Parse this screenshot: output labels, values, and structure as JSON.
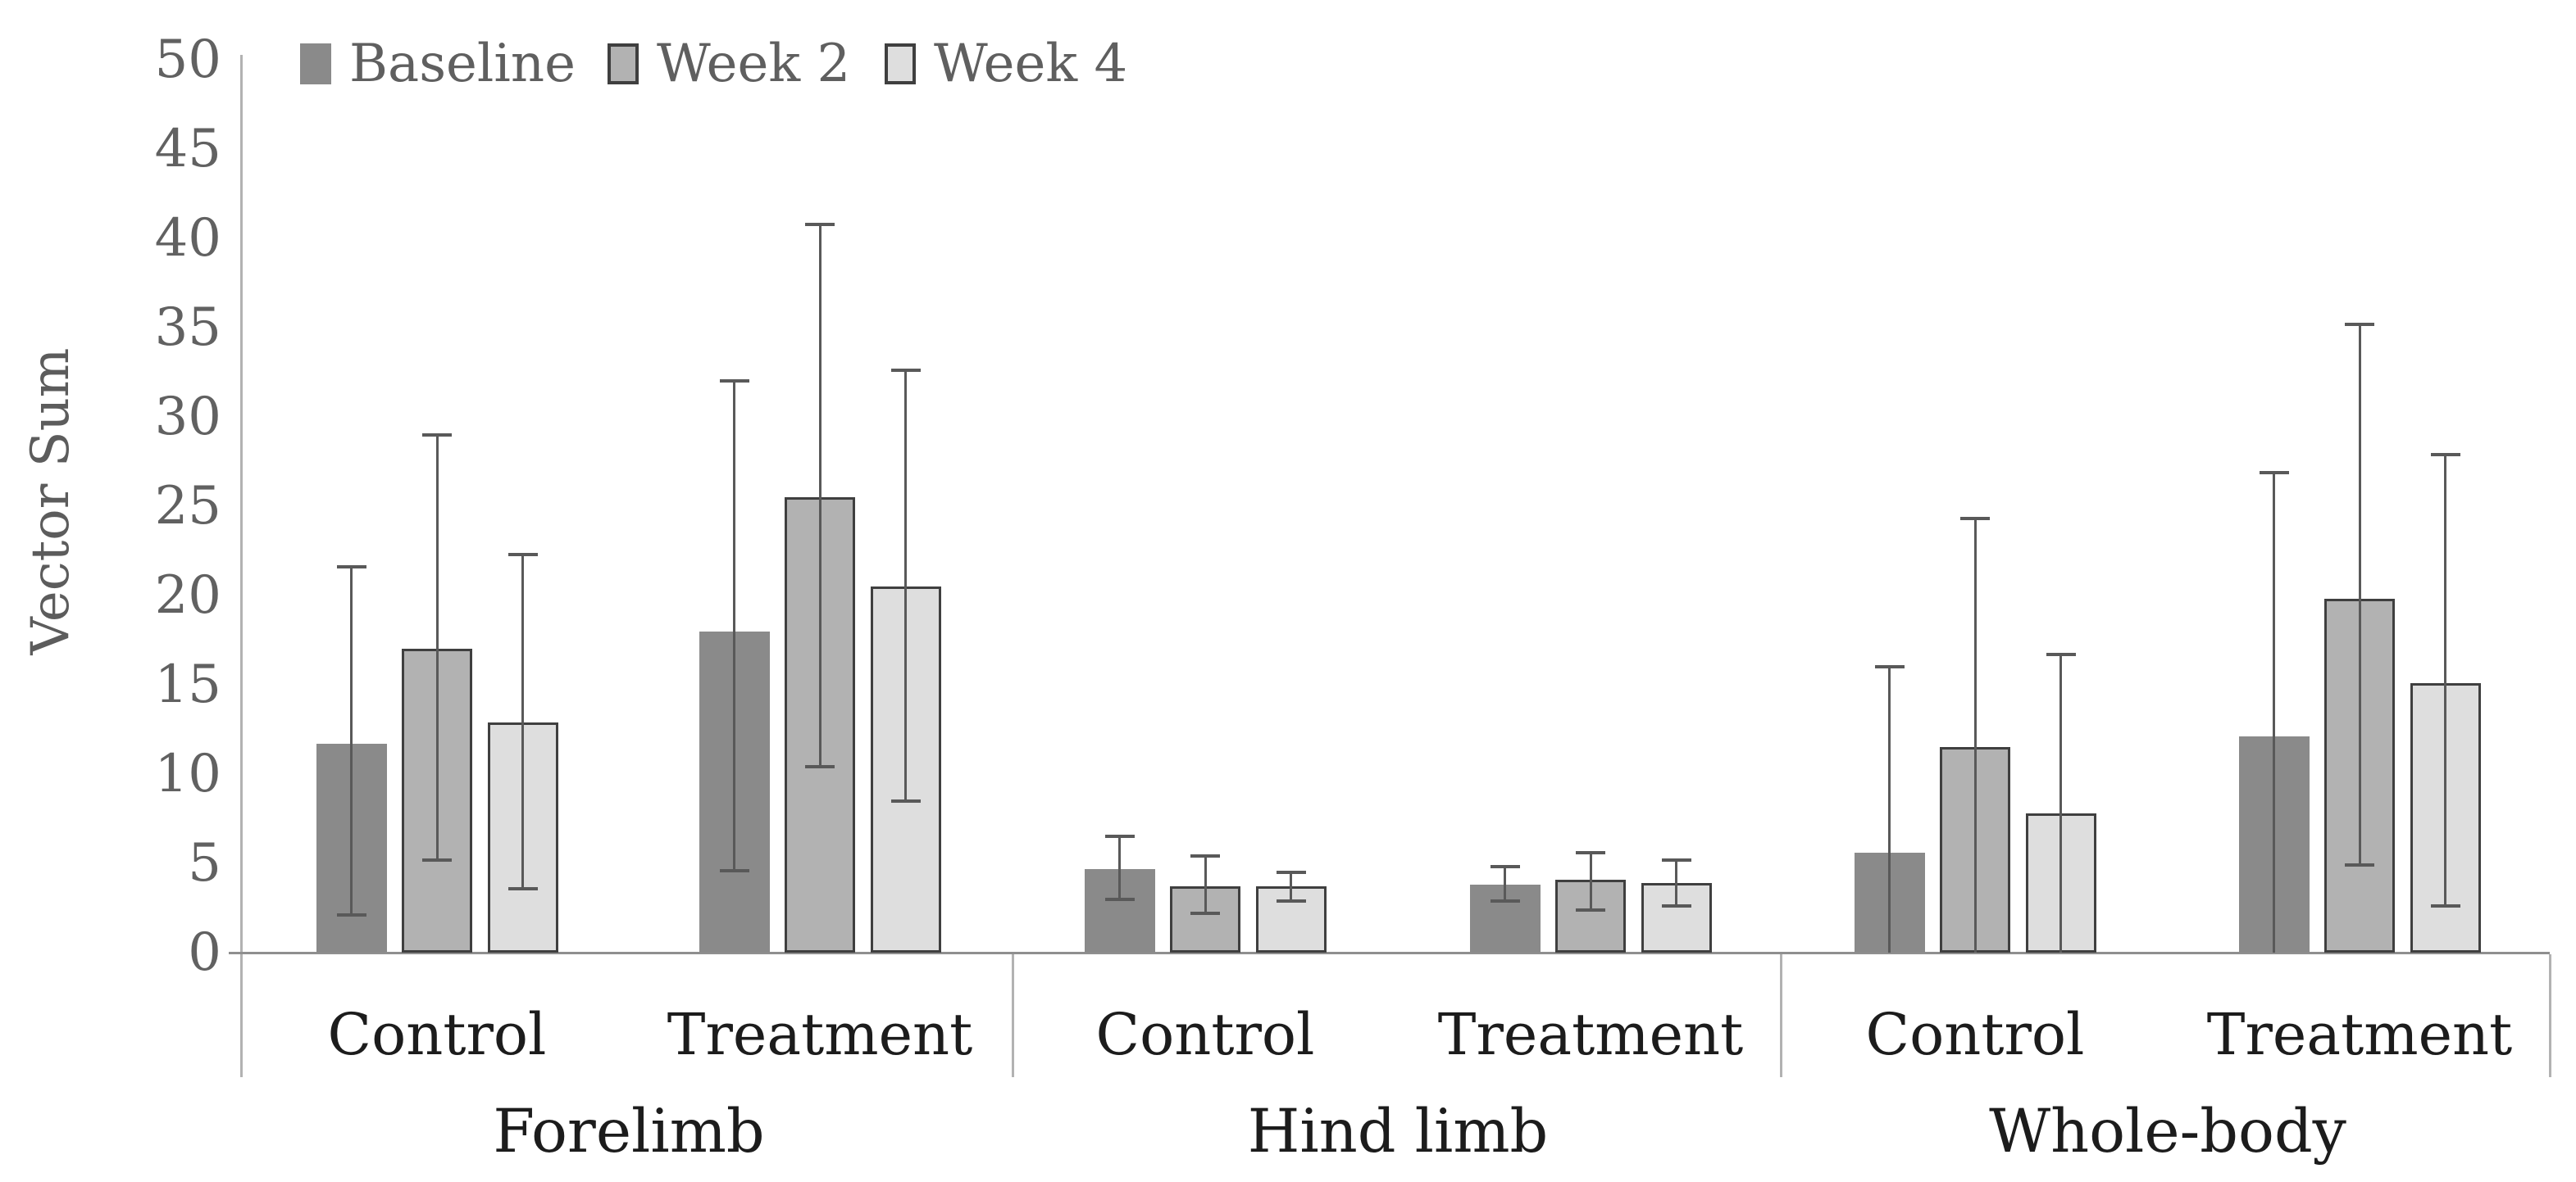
{
  "chart_data": {
    "type": "bar",
    "title": "",
    "ylabel": "Vector Sum",
    "ylim": [
      0,
      50
    ],
    "ytick_step": 5,
    "ytick_labels": [
      "0",
      "5",
      "10",
      "15",
      "20",
      "25",
      "30",
      "35",
      "40",
      "45",
      "50"
    ],
    "grid": false,
    "legend_position": "top-left",
    "error_bars": true,
    "series": [
      {
        "name": "Baseline",
        "fill": "#8a8a8a",
        "border": null
      },
      {
        "name": "Week 2",
        "fill": "#b2b2b2",
        "border": "#3f3f3f"
      },
      {
        "name": "Week 4",
        "fill": "#dedede",
        "border": "#3f3f3f"
      }
    ],
    "groups": [
      {
        "label": "Forelimb",
        "subgroups": [
          {
            "label": "Control",
            "values": [
              11.7,
              17.0,
              12.9
            ],
            "error_low": [
              2.1,
              5.2,
              3.6
            ],
            "error_high": [
              21.6,
              29.0,
              22.3
            ]
          },
          {
            "label": "Treatment",
            "values": [
              18.0,
              25.5,
              20.5
            ],
            "error_low": [
              4.6,
              10.4,
              8.5
            ],
            "error_high": [
              32.0,
              40.8,
              32.6
            ]
          }
        ]
      },
      {
        "label": "Hind limb",
        "subgroups": [
          {
            "label": "Control",
            "values": [
              4.7,
              3.7,
              3.7
            ],
            "error_low": [
              3.0,
              2.2,
              2.9
            ],
            "error_high": [
              6.5,
              5.4,
              4.5
            ]
          },
          {
            "label": "Treatment",
            "values": [
              3.8,
              4.1,
              3.9
            ],
            "error_low": [
              2.9,
              2.4,
              2.6
            ],
            "error_high": [
              4.8,
              5.6,
              5.2
            ]
          }
        ]
      },
      {
        "label": "Whole-body",
        "subgroups": [
          {
            "label": "Control",
            "values": [
              5.6,
              11.5,
              7.8
            ],
            "error_low": [
              0,
              0,
              0
            ],
            "error_high": [
              16.0,
              24.3,
              16.7
            ]
          },
          {
            "label": "Treatment",
            "values": [
              12.1,
              19.8,
              15.1
            ],
            "error_low": [
              0,
              4.9,
              2.6
            ],
            "error_high": [
              26.9,
              35.2,
              27.9
            ]
          }
        ]
      }
    ]
  },
  "colors": {
    "baseline_axis": "#8f8f8f",
    "secondary_axis": "#b2b2b2",
    "error_bar": "#595959",
    "tick_text": "#616161",
    "legend_text": "#5f5f5f",
    "category_text": "#1c1c1c"
  }
}
